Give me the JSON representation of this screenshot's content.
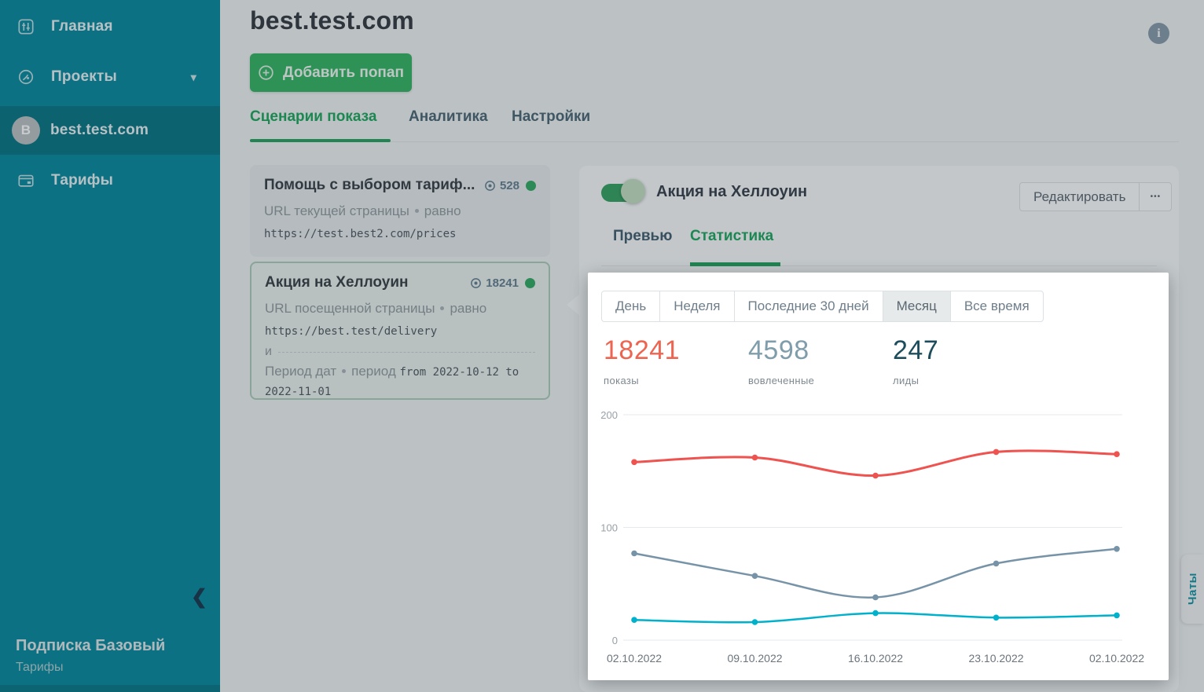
{
  "colors": {
    "brand_teal": "#00869a",
    "accent_green": "#2eb05e",
    "status_dot_green": "#2aa75c",
    "overlay_dim": "rgba(47,58,64,0.26)"
  },
  "sidebar": {
    "items": [
      {
        "icon": "sliders-icon",
        "label": "Главная"
      },
      {
        "icon": "globe-icon",
        "label": "Проекты",
        "caret": "▾"
      },
      {
        "avatar": "B",
        "label": "best.test.com",
        "active": true
      },
      {
        "icon": "wallet-icon",
        "label": "Тарифы"
      }
    ],
    "collapse_icon": "❮",
    "subscription_title": "Подписка Базовый",
    "subscription_link": "Тарифы"
  },
  "header": {
    "title": "best.test.com",
    "add_button": "Добавить попап",
    "info_icon": "i",
    "tabs": [
      {
        "label": "Сценарии показа",
        "active": true
      },
      {
        "label": "Аналитика",
        "active": false
      },
      {
        "label": "Настройки",
        "active": false
      }
    ]
  },
  "scenarios": [
    {
      "title": "Помощь с выбором тариф...",
      "views": "528",
      "conditions": [
        {
          "label": "URL текущей страницы",
          "op": "равно",
          "value": "https://test.best2.com/prices"
        }
      ]
    },
    {
      "title": "Акция на Хеллоуин",
      "views": "18241",
      "joiner": "и",
      "conditions": [
        {
          "label": "URL посещенной страницы",
          "op": "равно",
          "value": "https://best.test/delivery"
        },
        {
          "label": "Период дат",
          "op": "период",
          "value": "from 2022-10-12 to 2022-11-01"
        }
      ]
    }
  ],
  "detail": {
    "toggle_on": true,
    "title": "Акция на Хеллоуин",
    "edit_button": "Редактировать",
    "more_button": "•••",
    "tabs": [
      {
        "label": "Превью",
        "active": false
      },
      {
        "label": "Статистика",
        "active": true
      }
    ]
  },
  "stats_panel": {
    "period_buttons": [
      {
        "label": "День",
        "selected": false
      },
      {
        "label": "Неделя",
        "selected": false
      },
      {
        "label": "Последние 30 дней",
        "selected": false
      },
      {
        "label": "Месяц",
        "selected": true
      },
      {
        "label": "Все время",
        "selected": false
      }
    ],
    "metrics": [
      {
        "value": "18241",
        "label": "показы",
        "color": "#ed6450"
      },
      {
        "value": "4598",
        "label": "вовлеченные",
        "color": "#7f9dab"
      },
      {
        "value": "247",
        "label": "лиды",
        "color": "#1d4d5c"
      }
    ]
  },
  "chart_data": {
    "type": "line",
    "x": [
      "02.10.2022",
      "09.10.2022",
      "16.10.2022",
      "23.10.2022",
      "02.10.2022"
    ],
    "series": [
      {
        "name": "показы",
        "color": "#ef5350",
        "values": [
          158,
          162,
          146,
          167,
          165
        ]
      },
      {
        "name": "вовлеченные",
        "color": "#7693a8",
        "values": [
          77,
          57,
          38,
          68,
          81
        ]
      },
      {
        "name": "лиды",
        "color": "#00b1cc",
        "values": [
          18,
          16,
          24,
          20,
          22
        ]
      }
    ],
    "ylim": [
      0,
      200
    ],
    "yticks": [
      0,
      100,
      200
    ],
    "grid": true,
    "legend": "none",
    "smooth": true
  },
  "chat_tab": {
    "label": "Чаты"
  }
}
